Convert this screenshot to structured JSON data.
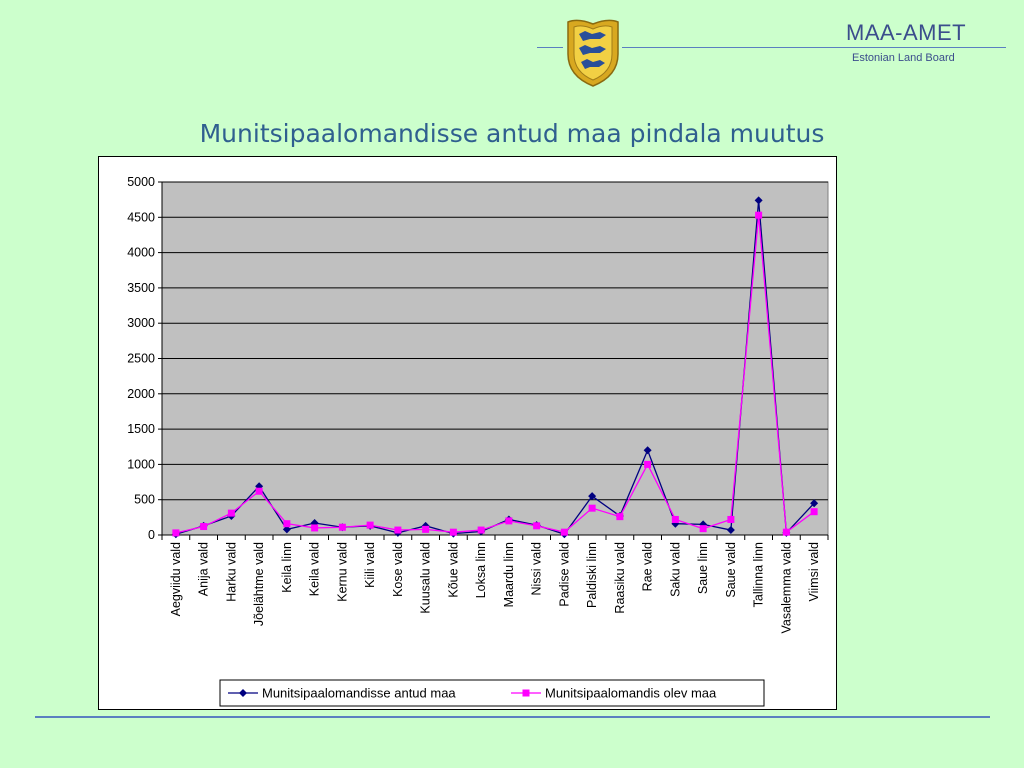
{
  "header": {
    "brand": "MAA-AMET",
    "brand_sub": "Estonian Land Board",
    "slide_title": "Munitsipaalomandisse antud maa pindala muutus"
  },
  "colors": {
    "background": "#ccffcc",
    "plot_area": "#c0c0c0",
    "series_1": "#000080",
    "series_2": "#ff00ff",
    "title": "#2f5f8f",
    "brand": "#3b4d8c"
  },
  "icons": {
    "crest": "estonian-coat-of-arms-icon"
  },
  "chart_data": {
    "type": "line",
    "title": "",
    "xlabel": "",
    "ylabel": "",
    "ylim": [
      0,
      5000
    ],
    "yticks": [
      0,
      500,
      1000,
      1500,
      2000,
      2500,
      3000,
      3500,
      4000,
      4500,
      5000
    ],
    "grid": "horizontal",
    "legend_position": "bottom",
    "categories": [
      "Aegviidu vald",
      "Anija vald",
      "Harku vald",
      "Jõelähtme vald",
      "Keila linn",
      "Keila vald",
      "Kernu vald",
      "Kiili vald",
      "Kose vald",
      "Kuusalu vald",
      "Kõue vald",
      "Loksa linn",
      "Maardu linn",
      "Nissi vald",
      "Padise vald",
      "Paldiski linn",
      "Raasiku vald",
      "Rae vald",
      "Saku vald",
      "Saue linn",
      "Saue vald",
      "Tallinna linn",
      "Vasalemma vald",
      "Viimsi vald"
    ],
    "series": [
      {
        "name": "Munitsipaalomandisse antud maa",
        "marker": "diamond",
        "values": [
          10,
          130,
          270,
          690,
          80,
          170,
          110,
          130,
          30,
          130,
          20,
          50,
          220,
          140,
          10,
          550,
          270,
          1200,
          160,
          150,
          70,
          4740,
          30,
          450
        ]
      },
      {
        "name": "Munitsipaalomandis olev maa",
        "marker": "square",
        "values": [
          30,
          120,
          310,
          620,
          160,
          100,
          110,
          140,
          70,
          80,
          40,
          70,
          200,
          130,
          40,
          380,
          260,
          1000,
          220,
          90,
          220,
          4530,
          40,
          330
        ]
      }
    ]
  }
}
